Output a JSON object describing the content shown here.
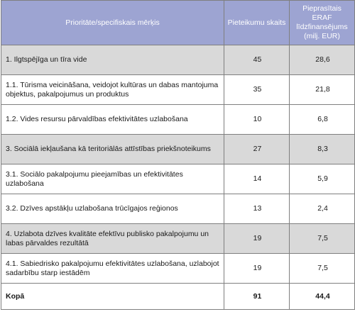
{
  "header": {
    "col1": "Prioritāte/specifiskais mērķis",
    "col2": "Pieteikumu skaits",
    "col3": "Pieprasītais ERAF līdzfinansējums (milj. EUR)"
  },
  "rows": [
    {
      "label": "1. Ilgtspējīga un tīra vide",
      "count": "45",
      "amount": "28,6",
      "shaded": true
    },
    {
      "label": "1.1.   Tūrisma veicināšana, veidojot kultūras un dabas mantojuma objektus, pakalpojumus un produktus",
      "count": "35",
      "amount": "21,8",
      "shaded": false
    },
    {
      "label": "1.2.   Vides resursu pārvaldības efektivitātes uzlabošana",
      "count": "10",
      "amount": "6,8",
      "shaded": false
    },
    {
      "label": "3.  Sociālā iekļaušana kā teritoriālās attīstības priekšnoteikums",
      "count": "27",
      "amount": "8,3",
      "shaded": true
    },
    {
      "label": "3.1.   Sociālo pakalpojumu pieejamības un efektivitātes uzlabošana",
      "count": "14",
      "amount": "5,9",
      "shaded": false
    },
    {
      "label": "3.2.  Dzīves apstākļu uzlabošana trūcīgajos reģionos",
      "count": "13",
      "amount": "2,4",
      "shaded": false
    },
    {
      "label": "4.  Uzlabota dzīves kvalitāte efektīvu publisko pakalpojumu un labas pārvaldes rezultātā",
      "count": "19",
      "amount": "7,5",
      "shaded": true
    },
    {
      "label": "4.1.  Sabiedrisko pakalpojumu efektivitātes uzlabošana, uzlabojot sadarbību starp iestādēm",
      "count": "19",
      "amount": "7,5",
      "shaded": false
    }
  ],
  "total": {
    "label": "Kopā",
    "count": "91",
    "amount": "44,4"
  }
}
